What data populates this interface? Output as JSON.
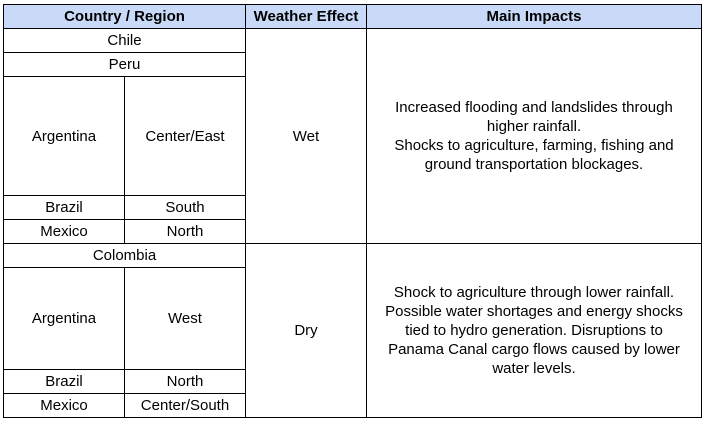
{
  "table": {
    "headers": [
      "Country / Region",
      "Weather Effect",
      "Main Impacts"
    ],
    "wet": {
      "effect": "Wet",
      "rows": {
        "chile": "Chile",
        "peru": "Peru",
        "argentina": {
          "country": "Argentina",
          "region": "Center/East"
        },
        "brazil": {
          "country": "Brazil",
          "region": "South"
        },
        "mexico": {
          "country": "Mexico",
          "region": "North"
        }
      },
      "impacts": [
        "Increased flooding and landslides through",
        "higher rainfall.",
        "Shocks to agriculture, farming, fishing and",
        "ground transportation blockages."
      ]
    },
    "dry": {
      "effect": "Dry",
      "rows": {
        "colombia": "Colombia",
        "argentina": {
          "country": "Argentina",
          "region": "West"
        },
        "brazil": {
          "country": "Brazil",
          "region": "North"
        },
        "mexico": {
          "country": "Mexico",
          "region": "Center/South"
        }
      },
      "impacts": [
        "Shock to agriculture through lower rainfall.",
        "Possible water shortages and energy shocks",
        "tied to hydro generation. Disruptions to",
        "Panama Canal cargo flows caused by lower",
        "water levels."
      ]
    }
  }
}
